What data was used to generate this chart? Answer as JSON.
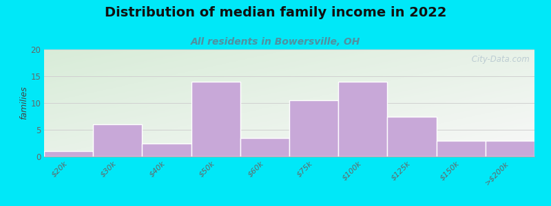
{
  "title": "Distribution of median family income in 2022",
  "subtitle": "All residents in Bowersville, OH",
  "categories": [
    "$20k",
    "$30k",
    "$40k",
    "$50k",
    "$60k",
    "$75k",
    "$100k",
    "$125k",
    "$150k",
    ">$200k"
  ],
  "values": [
    1,
    6,
    2.5,
    14,
    3.5,
    10.5,
    14,
    7.5,
    3,
    3
  ],
  "bar_color": "#c8a8d8",
  "bar_edge_color": "#ffffff",
  "ylabel": "families",
  "ylim": [
    0,
    20
  ],
  "yticks": [
    0,
    5,
    10,
    15,
    20
  ],
  "background_outer": "#00e8f8",
  "title_fontsize": 14,
  "subtitle_fontsize": 10,
  "subtitle_color": "#5090a0",
  "watermark": " City-Data.com",
  "grid_color": "#d0d0d0",
  "tick_color": "#666666",
  "tick_fontsize": 8
}
